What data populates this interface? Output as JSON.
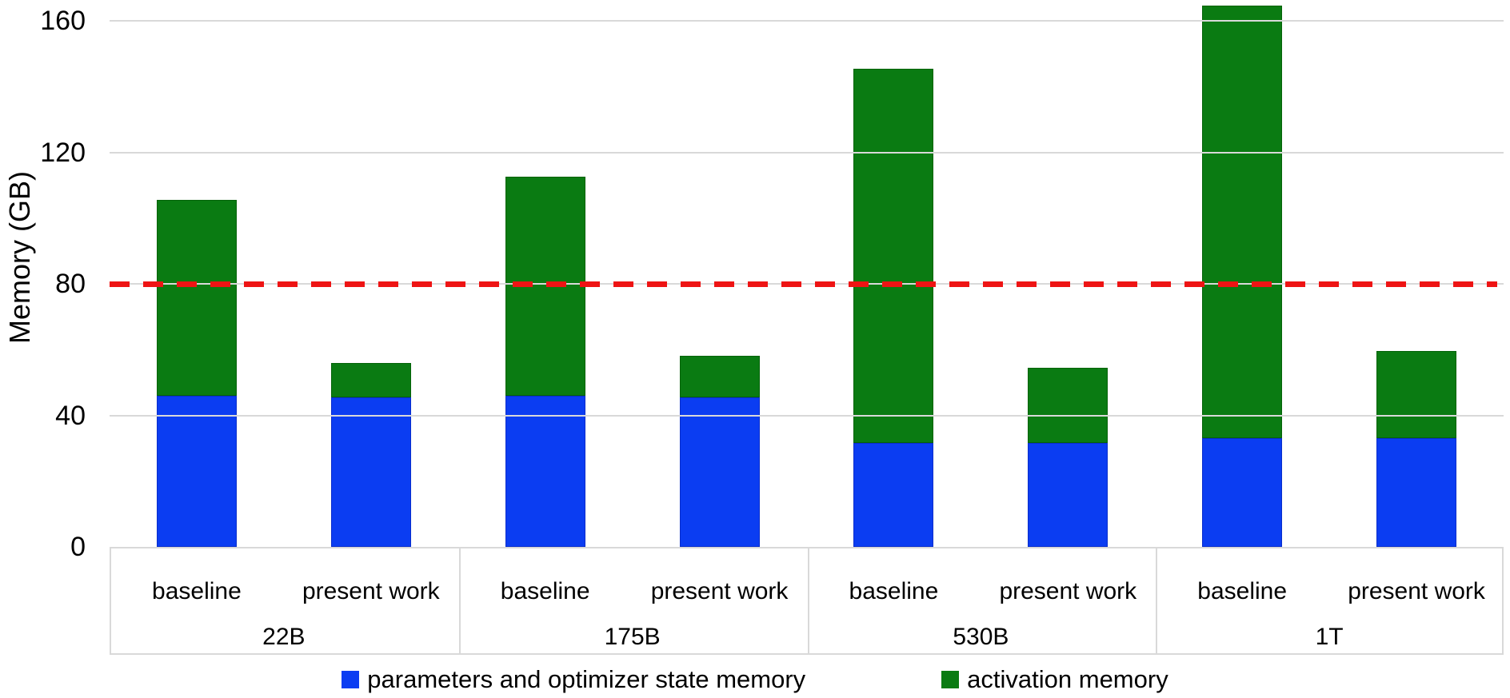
{
  "chart_data": {
    "type": "bar",
    "stacked": true,
    "title": "",
    "ylabel": "Memory (GB)",
    "yticks": [
      0,
      40,
      80,
      120,
      160
    ],
    "ylim": [
      0,
      166
    ],
    "grid": "horizontal",
    "categories": [
      "22B",
      "175B",
      "530B",
      "1T"
    ],
    "variants": [
      "baseline",
      "present work"
    ],
    "series_names": [
      "parameters and optimizer state memory",
      "activation memory"
    ],
    "bars": [
      {
        "category": "22B",
        "variant": "baseline",
        "params": 46,
        "activation": 59.5
      },
      {
        "category": "22B",
        "variant": "present work",
        "params": 45.5,
        "activation": 10.5
      },
      {
        "category": "175B",
        "variant": "baseline",
        "params": 46,
        "activation": 66.5
      },
      {
        "category": "175B",
        "variant": "present work",
        "params": 45.5,
        "activation": 12.5
      },
      {
        "category": "530B",
        "variant": "baseline",
        "params": 31.5,
        "activation": 114
      },
      {
        "category": "530B",
        "variant": "present work",
        "params": 31.5,
        "activation": 23
      },
      {
        "category": "1T",
        "variant": "baseline",
        "params": 33,
        "activation": 131.5
      },
      {
        "category": "1T",
        "variant": "present work",
        "params": 33,
        "activation": 26.5
      }
    ],
    "reference_line": {
      "value": 80,
      "style": "dashed",
      "color": "#ee1414"
    },
    "legend_position": "bottom-center"
  },
  "colors": {
    "params_blue": "#0b3df2",
    "activation_green": "#0a7b12",
    "reference_red": "#ee1414",
    "gridline_gray": "#d9d9d9",
    "text_black": "#000000"
  },
  "legend": {
    "params_label": "parameters and optimizer state memory",
    "activation_label": "activation memory"
  },
  "axis": {
    "y_title": "Memory (GB)"
  }
}
